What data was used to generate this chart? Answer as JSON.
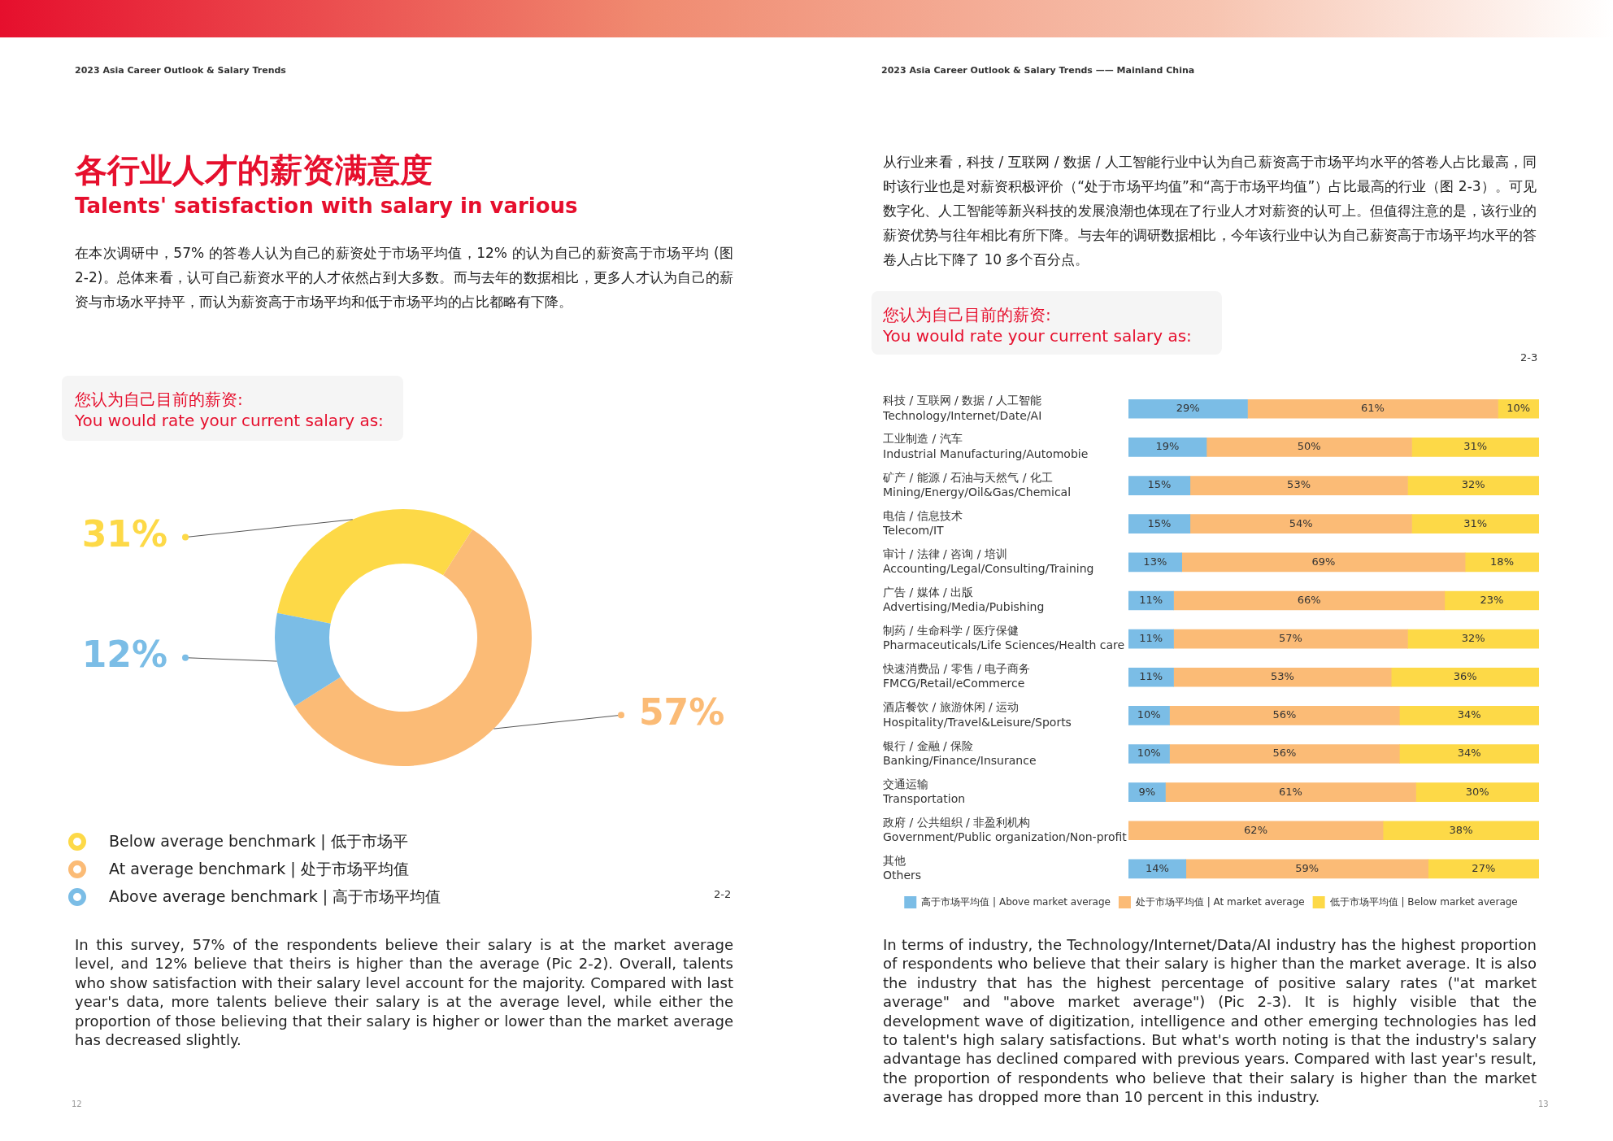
{
  "chart_data": [
    {
      "type": "donut",
      "title": "各行业人才的薪资满意度",
      "subtitle": "Talents' satisfaction with salary in various",
      "categories": [
        "Below average benchmark | 低于市场平",
        "At average benchmark | 处于市场平均值",
        "Above average benchmark | 高于市场平均值"
      ],
      "values": [
        31,
        57,
        12
      ],
      "colors": [
        "#fdd947",
        "#fbbb76",
        "#7bbde6"
      ],
      "value_labels": [
        "31%",
        "57%",
        "12%"
      ],
      "legend": "bottom left",
      "annotations": [
        "2023 Asia Career Outlook & Salary Trends",
        "在本次调研中，57% 的答卷人认为自己的薪资处于市场平均值，12% 的认为自己的薪资高于市场平均 (图 2-2)。总体来看，认可自己薪资水平的人才依然占到大多数。而与去年的数据相比，更多人才认为自己的薪资与市场水平持平，而认为薪资高于市场平均和低于市场平均的占比都略有下降。",
        "您认为自己目前的薪资:",
        "You would rate your current salary as:",
        "2-2",
        "In this survey, 57% of the respondents believe their salary is at the market average level, and 12% believe that theirs is higher than the average (Pic 2-2). Overall, talents who show satisfaction with their salary level account for the majority. Compared with last year's data, more talents believe their salary is at the average level, while either the proportion of those believing that their salary is higher or lower than the market average has decreased slightly.",
        "12"
      ]
    },
    {
      "type": "bar",
      "orientation": "horizontal",
      "stacked": true,
      "xlim": [
        0,
        100
      ],
      "tick_labels": "y",
      "legend": "bottom",
      "categories": [
        "科技 / 互联网 / 数据 / 人工智能\nTechnology/Internet/Date/AI",
        "工业制造 / 汽车\nIndustrial Manufacturing/Automobie",
        "矿产 / 能源 / 石油与天然气 / 化工\nMining/Energy/Oil&Gas/Chemical",
        "电信 / 信息技术\nTelecom/IT",
        "审计 / 法律 / 咨询 / 培训\nAccounting/Legal/Consulting/Training",
        "广告 / 媒体 / 出版\nAdvertising/Media/Pubishing",
        "制药 / 生命科学 / 医疗保健\nPharmaceuticals/Life Sciences/Health care",
        "快速消费品 / 零售 / 电子商务\nFMCG/Retail/eCommerce",
        "酒店餐饮 / 旅游休闲 / 运动\nHospitality/Travel&Leisure/Sports",
        "银行 / 金融 / 保险\nBanking/Finance/Insurance",
        "交通运输\nTransportation",
        "政府 / 公共组织 / 非盈利机构\nGovernment/Public organization/Non-profit",
        "其他\nOthers"
      ],
      "series": [
        {
          "name": "高于市场平均值 | Above market average",
          "color": "#7bbde6",
          "values": [
            29,
            19,
            15,
            15,
            13,
            11,
            11,
            11,
            10,
            10,
            9,
            null,
            14
          ],
          "value_labels": [
            "29%",
            "19%",
            "15%",
            "15%",
            "13%",
            "11%",
            "11%",
            "11%",
            "10%",
            "10%",
            "9%",
            null,
            "14%"
          ]
        },
        {
          "name": "处于市场平均值 | At market average",
          "color": "#fbbb76",
          "values": [
            61,
            50,
            53,
            54,
            69,
            66,
            57,
            53,
            56,
            56,
            61,
            62,
            59
          ],
          "value_labels": [
            "61%",
            "50%",
            "53%",
            "54%",
            "69%",
            "66%",
            "57%",
            "53%",
            "56%",
            "56%",
            "61%",
            "62%",
            "59%"
          ]
        },
        {
          "name": "低于市场平均值 | Below market average",
          "color": "#fdd947",
          "values": [
            10,
            31,
            32,
            31,
            18,
            23,
            32,
            36,
            34,
            34,
            30,
            38,
            27
          ],
          "value_labels": [
            "10%",
            "31%",
            "32%",
            "31%",
            "18%",
            "23%",
            "32%",
            "36%",
            "34%",
            "34%",
            "30%",
            "38%",
            "27%"
          ]
        }
      ],
      "annotations": [
        "2023 Asia Career Outlook & Salary Trends —— Mainland China",
        "从行业来看，科技 / 互联网 / 数据 / 人工智能行业中认为自己薪资高于市场平均水平的答卷人占比最高，同时该行业也是对薪资积极评价（“处于市场平均值”和“高于市场平均值”）占比最高的行业（图 2-3）。可见数字化、人工智能等新兴科技的发展浪潮也体现在了行业人才对薪资的认可上。但值得注意的是，该行业的薪资优势与往年相比有所下降。与去年的调研数据相比，今年该行业中认为自己薪资高于市场平均水平的答卷人占比下降了 10 多个百分点。",
        "您认为自己目前的薪资:",
        "You would rate your current salary as:",
        "2-3",
        "In terms of industry, the Technology/Internet/Data/AI industry has the highest proportion of respondents who believe that their salary is higher than the market average. It is also the industry that has the highest percentage of positive salary rates (\"at market average\" and \"above market average\") (Pic 2-3). It is highly visible that the development wave of digitization, intelligence and other emerging technologies has led to talent's high salary satisfactions. But what's worth noting is that the industry's salary advantage has declined compared with previous years. Compared with last year's result, the proportion of respondents who believe that their salary is higher than the market average has dropped more than 10 percent in this industry.",
        "13"
      ]
    }
  ]
}
